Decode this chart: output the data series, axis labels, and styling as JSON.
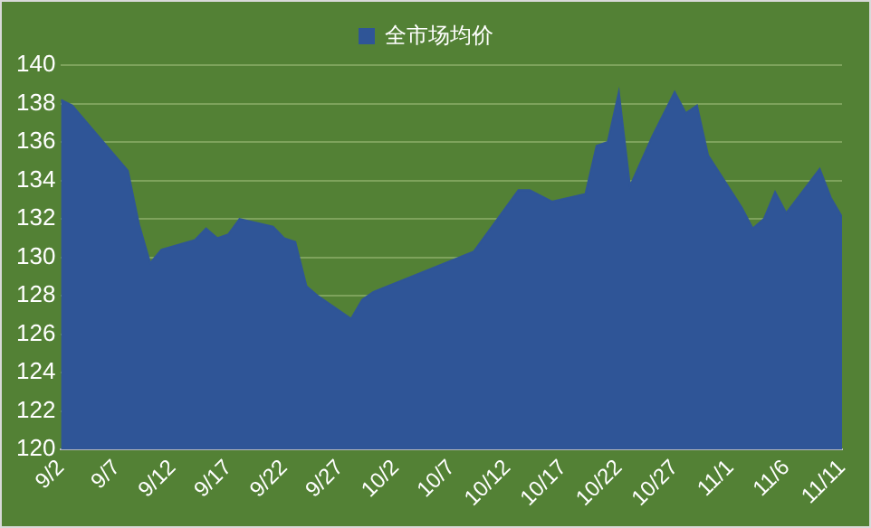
{
  "chart_data": {
    "type": "area",
    "legend": "top",
    "x": [
      "--09-02",
      "--09-03",
      "--09-08",
      "--09-09",
      "--09-10",
      "--09-11",
      "--09-14",
      "--09-15",
      "--09-16",
      "--09-17",
      "--09-18",
      "--09-21",
      "--09-22",
      "--09-23",
      "--09-24",
      "--09-25",
      "--09-28",
      "--09-29",
      "--09-30",
      "--10-09",
      "--10-13",
      "--10-14",
      "--10-16",
      "--10-19",
      "--10-20",
      "--10-21",
      "--10-22",
      "--10-23",
      "--10-25",
      "--10-27",
      "--10-28",
      "--10-29",
      "--10-30",
      "--11-02",
      "--11-03",
      "--11-04",
      "--11-05",
      "--11-06",
      "--11-09",
      "--11-10",
      "--11-11"
    ],
    "series": [
      {
        "name": "全市场均价",
        "color": "#2f5597",
        "values": [
          138.2,
          137.9,
          134.5,
          131.7,
          129.7,
          130.4,
          130.9,
          131.5,
          131.0,
          131.2,
          132.0,
          131.6,
          131.0,
          130.8,
          128.5,
          128.0,
          126.8,
          127.8,
          128.2,
          130.3,
          133.5,
          133.5,
          132.9,
          133.3,
          135.8,
          136.0,
          138.6,
          133.7,
          136.3,
          138.6,
          137.5,
          137.9,
          135.3,
          132.6,
          131.5,
          132.0,
          133.4,
          132.3,
          134.6,
          133.1,
          132.1
        ]
      }
    ],
    "xlim": [
      "--09-02",
      "--11-11"
    ],
    "xticks": [
      {
        "value": "--09-02",
        "label": "9/2"
      },
      {
        "value": "--09-07",
        "label": "9/7"
      },
      {
        "value": "--09-12",
        "label": "9/12"
      },
      {
        "value": "--09-17",
        "label": "9/17"
      },
      {
        "value": "--09-22",
        "label": "9/22"
      },
      {
        "value": "--09-27",
        "label": "9/27"
      },
      {
        "value": "--10-02",
        "label": "10/2"
      },
      {
        "value": "--10-07",
        "label": "10/7"
      },
      {
        "value": "--10-12",
        "label": "10/12"
      },
      {
        "value": "--10-17",
        "label": "10/17"
      },
      {
        "value": "--10-22",
        "label": "10/22"
      },
      {
        "value": "--10-27",
        "label": "10/27"
      },
      {
        "value": "--11-01",
        "label": "11/1"
      },
      {
        "value": "--11-06",
        "label": "11/6"
      },
      {
        "value": "--11-11",
        "label": "11/11"
      }
    ],
    "ylim": [
      120,
      140
    ],
    "yticks": [
      120,
      122,
      124,
      126,
      128,
      130,
      132,
      134,
      136,
      138,
      140
    ],
    "grid": "y"
  }
}
